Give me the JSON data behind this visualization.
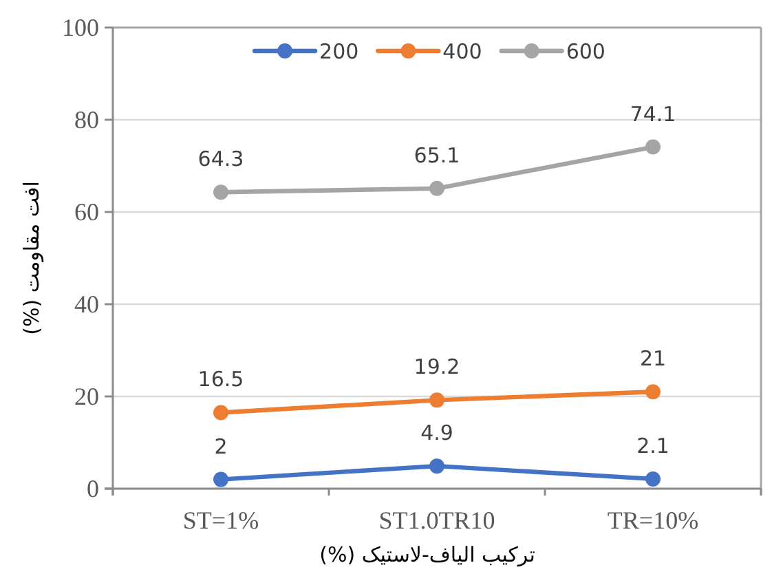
{
  "chart_data": {
    "type": "line",
    "xlabel": "ترکیب الیاف-لاستیک (%)",
    "ylabel": "افت مقاومت (%)",
    "categories": [
      "ST=1%",
      "ST1.0TR10",
      "TR=10%"
    ],
    "series": [
      {
        "name": "200",
        "color": "#4472c4",
        "values": [
          2,
          4.9,
          2.1
        ]
      },
      {
        "name": "400",
        "color": "#ed7d31",
        "values": [
          16.5,
          19.2,
          21
        ]
      },
      {
        "name": "600",
        "color": "#a5a5a5",
        "values": [
          64.3,
          65.1,
          74.1
        ]
      }
    ],
    "ylim": [
      0,
      100
    ],
    "yticks": [
      0,
      20,
      40,
      60,
      80,
      100
    ],
    "grid": "y",
    "legend": "top",
    "marker": "circle",
    "data_labels": true
  }
}
